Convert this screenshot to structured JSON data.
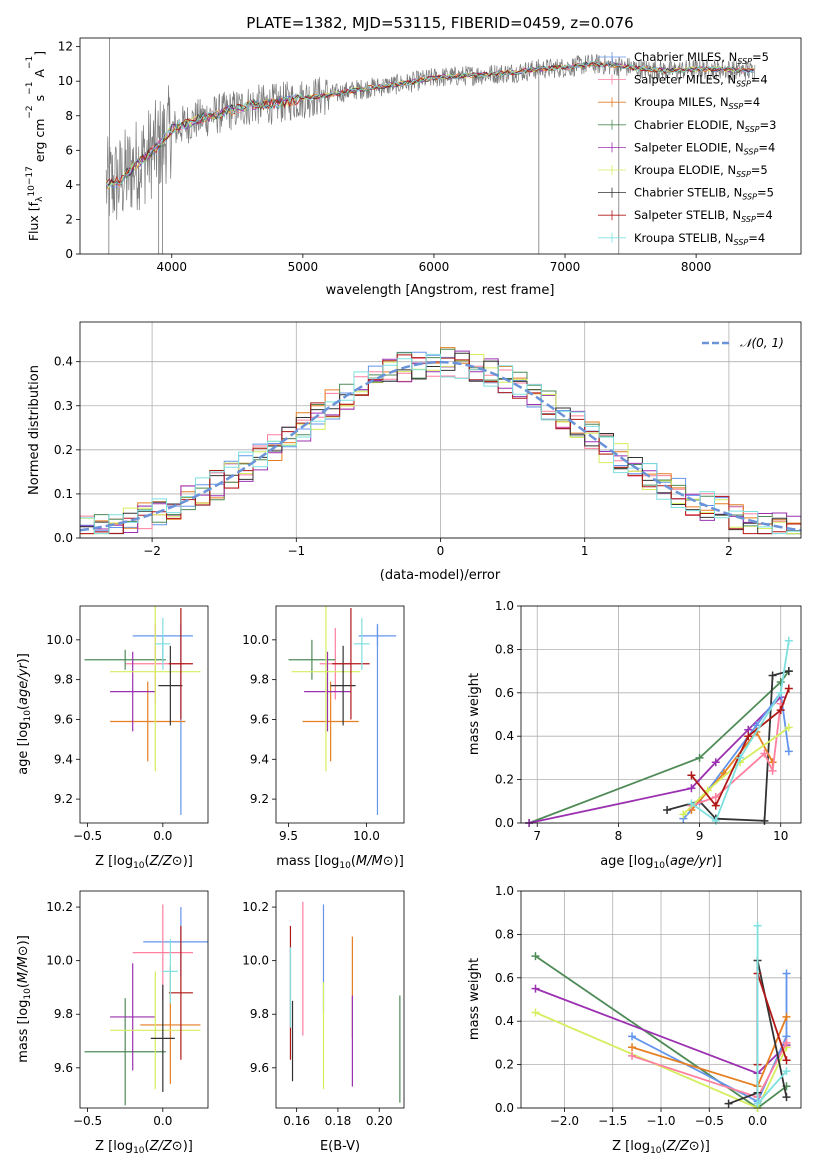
{
  "page_title": "PLATE=1382, MJD=53115, FIBERID=0459, z=0.076",
  "colors": {
    "Chabrier MILES": "#6495ed",
    "Salpeter MILES": "#ff7f9f",
    "Kroupa MILES": "#e67e22",
    "Chabrier ELODIE": "#4e8b57",
    "Salpeter ELODIE": "#9b30b0",
    "Kroupa ELODIE": "#d4ee5e",
    "Chabrier STELIB": "#333333",
    "Salpeter STELIB": "#b01818",
    "Kroupa STELIB": "#7fe0e0",
    "spectrum_data": "#7a7a7a",
    "gaussian": "#6a93d8"
  },
  "legend_spectrum": [
    {
      "name": "Chabrier MILES",
      "nssp": "5"
    },
    {
      "name": "Salpeter MILES",
      "nssp": "4"
    },
    {
      "name": "Kroupa MILES",
      "nssp": "4"
    },
    {
      "name": "Chabrier ELODIE",
      "nssp": "3"
    },
    {
      "name": "Salpeter ELODIE",
      "nssp": "4"
    },
    {
      "name": "Kroupa ELODIE",
      "nssp": "5"
    },
    {
      "name": "Chabrier STELIB",
      "nssp": "5"
    },
    {
      "name": "Salpeter STELIB",
      "nssp": "4"
    },
    {
      "name": "Kroupa STELIB",
      "nssp": "4"
    }
  ],
  "chart_data": [
    {
      "type": "line",
      "id": "spectrum",
      "xlabel": "wavelength [Angstrom, rest frame]",
      "ylabel": "Flux [f_λ 10^-17 erg cm^-2 s^-1 A^-1]",
      "xlim": [
        3300,
        8800
      ],
      "ylim": [
        0,
        12.5
      ],
      "xticks": [
        4000,
        5000,
        6000,
        7000,
        8000
      ],
      "yticks": [
        0,
        2,
        4,
        6,
        8,
        10,
        12
      ],
      "continuum": {
        "x": [
          3500,
          3600,
          3700,
          3800,
          3900,
          4000,
          4200,
          4400,
          4600,
          4800,
          5000,
          5200,
          5400,
          5600,
          5800,
          6000,
          6200,
          6400,
          6600,
          6800,
          7000,
          7200,
          7400,
          7600,
          7800,
          8000,
          8200,
          8400
        ],
        "y": [
          4.0,
          4.2,
          5.0,
          5.6,
          6.3,
          7.2,
          7.8,
          8.2,
          8.6,
          8.7,
          9.0,
          9.2,
          9.5,
          9.7,
          9.9,
          10.2,
          10.3,
          10.4,
          10.5,
          10.7,
          10.8,
          11.0,
          10.9,
          10.7,
          10.6,
          10.7,
          10.7,
          10.6
        ]
      },
      "legend": "top-right"
    },
    {
      "type": "line",
      "id": "residuals",
      "xlabel": "(data-model)/error",
      "ylabel": "Normed distribution",
      "xlim": [
        -2.5,
        2.5
      ],
      "ylim": [
        0,
        0.49
      ],
      "xticks": [
        -2,
        -1,
        0,
        1,
        2
      ],
      "yticks": [
        0.0,
        0.1,
        0.2,
        0.3,
        0.4
      ],
      "gaussian_label": "𝒩(0, 1)",
      "grid": true,
      "legend": "top-right"
    },
    {
      "type": "scatter",
      "id": "z-age",
      "xlabel": "Z [log10(Z/Z⊙)]",
      "ylabel": "age [log10(age/yr)]",
      "xlim": [
        -0.55,
        0.3
      ],
      "ylim": [
        9.08,
        10.17
      ],
      "xticks": [
        -0.5,
        0.0
      ],
      "yticks": [
        9.2,
        9.4,
        9.6,
        9.8,
        10.0
      ],
      "points": [
        {
          "series": "Chabrier MILES",
          "x": 0.0,
          "y": 10.02,
          "xerr": 0.2,
          "yerr": [
            0.13,
            0.0
          ]
        },
        {
          "series": "Chabrier MILES",
          "x": 0.12,
          "y": 9.6,
          "xerr": 0.0,
          "yerr": 0.48
        },
        {
          "series": "Salpeter MILES",
          "x": -0.05,
          "y": 9.88,
          "xerr": 0.2,
          "yerr": 0.2
        },
        {
          "series": "Kroupa MILES",
          "x": -0.1,
          "y": 9.59,
          "xerr": 0.25,
          "yerr": 0.2
        },
        {
          "series": "Chabrier ELODIE",
          "x": -0.25,
          "y": 9.9,
          "xerr": 0.27,
          "yerr": 0.05
        },
        {
          "series": "Salpeter ELODIE",
          "x": -0.2,
          "y": 9.74,
          "xerr": 0.15,
          "yerr": 0.2
        },
        {
          "series": "Kroupa ELODIE",
          "x": -0.05,
          "y": 9.84,
          "xerr": 0.3,
          "yerr": 0.5
        },
        {
          "series": "Chabrier STELIB",
          "x": 0.05,
          "y": 9.77,
          "xerr": 0.08,
          "yerr": 0.2
        },
        {
          "series": "Salpeter STELIB",
          "x": 0.12,
          "y": 9.88,
          "xerr": 0.08,
          "yerr": 0.28
        },
        {
          "series": "Kroupa STELIB",
          "x": 0.0,
          "y": 9.98,
          "xerr": 0.05,
          "yerr": 0.13
        }
      ]
    },
    {
      "type": "scatter",
      "id": "mass-age",
      "xlabel": "mass [log10(M/M⊙)]",
      "ylabel": "",
      "xlim": [
        9.42,
        10.24
      ],
      "ylim": [
        9.08,
        10.17
      ],
      "xticks": [
        9.5,
        10.0
      ],
      "yticks": [
        9.2,
        9.4,
        9.6,
        9.8,
        10.0
      ],
      "points": [
        {
          "series": "Chabrier MILES",
          "x": 10.07,
          "y": 10.02,
          "xerr": 0.12,
          "yerr": 0.05
        },
        {
          "series": "Chabrier MILES",
          "x": 10.07,
          "y": 9.6,
          "xerr": 0.0,
          "yerr": 0.48
        },
        {
          "series": "Salpeter MILES",
          "x": 9.8,
          "y": 9.88,
          "xerr": 0.1,
          "yerr": 0.18
        },
        {
          "series": "Kroupa MILES",
          "x": 9.77,
          "y": 9.59,
          "xerr": 0.18,
          "yerr": 0.2
        },
        {
          "series": "Chabrier ELODIE",
          "x": 9.65,
          "y": 9.9,
          "xerr": 0.15,
          "yerr": 0.1
        },
        {
          "series": "Salpeter ELODIE",
          "x": 9.75,
          "y": 9.74,
          "xerr": 0.15,
          "yerr": 0.2
        },
        {
          "series": "Kroupa ELODIE",
          "x": 9.74,
          "y": 9.84,
          "xerr": 0.22,
          "yerr": 0.5
        },
        {
          "series": "Chabrier STELIB",
          "x": 9.85,
          "y": 9.77,
          "xerr": 0.08,
          "yerr": 0.2
        },
        {
          "series": "Salpeter STELIB",
          "x": 9.9,
          "y": 9.88,
          "xerr": 0.12,
          "yerr": 0.28
        },
        {
          "series": "Kroupa STELIB",
          "x": 9.97,
          "y": 9.98,
          "xerr": 0.05,
          "yerr": 0.13
        }
      ]
    },
    {
      "type": "line",
      "id": "age-massweight",
      "xlabel": "age [log10(age/yr)]",
      "ylabel": "mass weight",
      "xlim": [
        6.8,
        10.25
      ],
      "ylim": [
        0,
        1.0
      ],
      "xticks": [
        7,
        8,
        9,
        10
      ],
      "yticks": [
        0.0,
        0.2,
        0.4,
        0.6,
        0.8,
        1.0
      ],
      "grid": true,
      "series": [
        {
          "name": "Chabrier ELODIE",
          "x": [
            6.9,
            9.0,
            10.0,
            10.1
          ],
          "y": [
            0.0,
            0.3,
            0.65,
            0.7
          ]
        },
        {
          "name": "Salpeter ELODIE",
          "x": [
            6.9,
            8.9,
            9.2,
            9.6,
            10.0
          ],
          "y": [
            0.0,
            0.16,
            0.28,
            0.43,
            0.58
          ]
        },
        {
          "name": "Chabrier STELIB",
          "x": [
            8.6,
            9.0,
            9.2,
            9.8,
            9.9,
            10.1
          ],
          "y": [
            0.06,
            0.1,
            0.02,
            0.01,
            0.68,
            0.7
          ]
        },
        {
          "name": "Chabrier MILES",
          "x": [
            8.8,
            9.0,
            9.7,
            10.0,
            10.1
          ],
          "y": [
            0.02,
            0.1,
            0.45,
            0.6,
            0.33
          ]
        },
        {
          "name": "Kroupa MILES",
          "x": [
            8.9,
            9.3,
            9.7,
            9.9
          ],
          "y": [
            0.06,
            0.23,
            0.42,
            0.28
          ]
        },
        {
          "name": "Salpeter MILES",
          "x": [
            8.9,
            9.2,
            9.8,
            9.9,
            10.0
          ],
          "y": [
            0.08,
            0.12,
            0.32,
            0.24,
            0.55
          ]
        },
        {
          "name": "Kroupa ELODIE",
          "x": [
            8.8,
            9.1,
            9.5,
            10.1
          ],
          "y": [
            0.04,
            0.15,
            0.28,
            0.44
          ]
        },
        {
          "name": "Salpeter STELIB",
          "x": [
            8.9,
            9.2,
            9.6,
            10.0,
            10.1
          ],
          "y": [
            0.22,
            0.08,
            0.4,
            0.52,
            0.62
          ]
        },
        {
          "name": "Kroupa STELIB",
          "x": [
            8.9,
            9.2,
            9.5,
            10.0,
            10.1
          ],
          "y": [
            0.09,
            0.01,
            0.3,
            0.6,
            0.84
          ]
        }
      ]
    },
    {
      "type": "scatter",
      "id": "z-mass",
      "xlabel": "Z [log10(Z/Z⊙)]",
      "ylabel": "mass [log10(M/M⊙)]",
      "xlim": [
        -0.55,
        0.3
      ],
      "ylim": [
        9.45,
        10.26
      ],
      "xticks": [
        -0.5,
        0.0
      ],
      "yticks": [
        9.6,
        9.8,
        10.0,
        10.2
      ],
      "points": [
        {
          "series": "Chabrier MILES",
          "x": 0.12,
          "y": 10.07,
          "xerr": 0.25,
          "yerr": 0.13
        },
        {
          "series": "Salpeter MILES",
          "x": 0.0,
          "y": 10.03,
          "xerr": 0.2,
          "yerr": 0.18
        },
        {
          "series": "Kroupa MILES",
          "x": 0.05,
          "y": 9.76,
          "xerr": 0.2,
          "yerr": 0.22
        },
        {
          "series": "Chabrier ELODIE",
          "x": -0.25,
          "y": 9.66,
          "xerr": 0.27,
          "yerr": 0.2
        },
        {
          "series": "Salpeter ELODIE",
          "x": -0.2,
          "y": 9.79,
          "xerr": 0.15,
          "yerr": 0.2
        },
        {
          "series": "Kroupa ELODIE",
          "x": -0.05,
          "y": 9.74,
          "xerr": 0.3,
          "yerr": 0.22
        },
        {
          "series": "Chabrier STELIB",
          "x": 0.0,
          "y": 9.71,
          "xerr": 0.08,
          "yerr": 0.2
        },
        {
          "series": "Salpeter STELIB",
          "x": 0.12,
          "y": 9.88,
          "xerr": 0.08,
          "yerr": 0.25
        },
        {
          "series": "Kroupa STELIB",
          "x": 0.05,
          "y": 9.96,
          "xerr": 0.05,
          "yerr": 0.12
        }
      ]
    },
    {
      "type": "scatter",
      "id": "ebv-mass",
      "xlabel": "E(B-V)",
      "ylabel": "",
      "xlim": [
        0.15,
        0.212
      ],
      "ylim": [
        9.45,
        10.26
      ],
      "xticks": [
        0.16,
        0.18,
        0.2
      ],
      "yticks": [
        9.6,
        9.8,
        10.0,
        10.2
      ],
      "points": [
        {
          "series": "Chabrier MILES",
          "x": 0.173,
          "y": 10.01,
          "xerr": 0.0,
          "yerr": 0.2
        },
        {
          "series": "Salpeter MILES",
          "x": 0.163,
          "y": 9.97,
          "xerr": 0.0,
          "yerr": 0.25
        },
        {
          "series": "Kroupa MILES",
          "x": 0.187,
          "y": 9.9,
          "xerr": 0.0,
          "yerr": 0.19
        },
        {
          "series": "Chabrier ELODIE",
          "x": 0.21,
          "y": 9.67,
          "xerr": 0.0,
          "yerr": 0.2
        },
        {
          "series": "Salpeter ELODIE",
          "x": 0.187,
          "y": 9.7,
          "xerr": 0.0,
          "yerr": 0.17
        },
        {
          "series": "Kroupa ELODIE",
          "x": 0.173,
          "y": 9.72,
          "xerr": 0.0,
          "yerr": 0.2
        },
        {
          "series": "Chabrier STELIB",
          "x": 0.158,
          "y": 9.7,
          "xerr": 0.0,
          "yerr": 0.15
        },
        {
          "series": "Salpeter STELIB",
          "x": 0.157,
          "y": 9.88,
          "xerr": 0.0,
          "yerr": 0.25
        },
        {
          "series": "Kroupa STELIB",
          "x": 0.157,
          "y": 9.9,
          "xerr": 0.0,
          "yerr": 0.15
        }
      ]
    },
    {
      "type": "line",
      "id": "z-massweight",
      "xlabel": "Z [log10(Z/Z⊙)]",
      "ylabel": "mass weight",
      "xlim": [
        -2.45,
        0.45
      ],
      "ylim": [
        0,
        1.0
      ],
      "xticks": [
        -2.0,
        -1.5,
        -1.0,
        -0.5,
        0.0
      ],
      "yticks": [
        0.0,
        0.2,
        0.4,
        0.6,
        0.8,
        1.0
      ],
      "grid": true,
      "series": [
        {
          "name": "Chabrier ELODIE",
          "x": [
            -2.3,
            0.0,
            0.3
          ],
          "y": [
            0.7,
            0.0,
            0.1
          ]
        },
        {
          "name": "Salpeter ELODIE",
          "x": [
            -2.3,
            0.0,
            0.3
          ],
          "y": [
            0.55,
            0.16,
            0.29
          ]
        },
        {
          "name": "Kroupa ELODIE",
          "x": [
            -2.3,
            0.0,
            0.3
          ],
          "y": [
            0.44,
            0.0,
            0.28
          ]
        },
        {
          "name": "Chabrier MILES",
          "x": [
            -1.3,
            0.0,
            0.3,
            0.3
          ],
          "y": [
            0.33,
            0.03,
            0.33,
            0.62
          ]
        },
        {
          "name": "Kroupa MILES",
          "x": [
            -1.3,
            0.0,
            0.3
          ],
          "y": [
            0.28,
            0.1,
            0.42
          ]
        },
        {
          "name": "Salpeter MILES",
          "x": [
            -1.3,
            0.0,
            0.3
          ],
          "y": [
            0.24,
            0.05,
            0.3
          ]
        },
        {
          "name": "Chabrier STELIB",
          "x": [
            -0.3,
            0.0,
            0.0,
            0.3
          ],
          "y": [
            0.02,
            0.07,
            0.68,
            0.05
          ]
        },
        {
          "name": "Salpeter STELIB",
          "x": [
            0.0,
            0.0,
            0.3
          ],
          "y": [
            0.2,
            0.62,
            0.22
          ]
        },
        {
          "name": "Kroupa STELIB",
          "x": [
            0.0,
            0.0,
            0.3
          ],
          "y": [
            0.84,
            0.02,
            0.17
          ]
        }
      ]
    }
  ]
}
